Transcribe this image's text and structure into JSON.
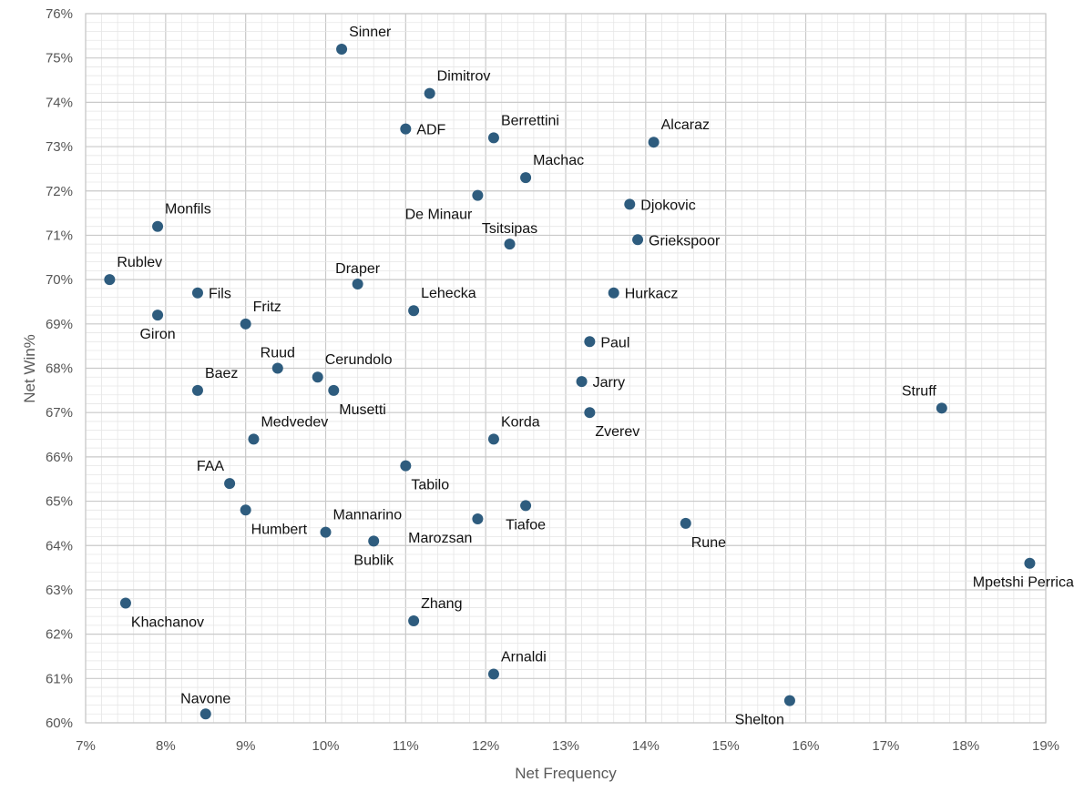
{
  "chart_data": {
    "type": "scatter",
    "xlabel": "Net Frequency",
    "ylabel": "Net Win%",
    "xlim": [
      7,
      19
    ],
    "ylim": [
      60,
      76
    ],
    "x_unit": "%",
    "y_unit": "%",
    "xticks": [
      "7%",
      "8%",
      "9%",
      "10%",
      "11%",
      "12%",
      "13%",
      "14%",
      "15%",
      "16%",
      "17%",
      "18%",
      "19%"
    ],
    "yticks": [
      "60%",
      "61%",
      "62%",
      "63%",
      "64%",
      "65%",
      "66%",
      "67%",
      "68%",
      "69%",
      "70%",
      "71%",
      "72%",
      "73%",
      "74%",
      "75%",
      "76%"
    ],
    "grid": true,
    "marker_color": "#2e5c7e",
    "points": [
      {
        "name": "Sinner",
        "x": 10.2,
        "y": 75.2,
        "label_pos": "above-right"
      },
      {
        "name": "Dimitrov",
        "x": 11.3,
        "y": 74.2,
        "label_pos": "above-right"
      },
      {
        "name": "ADF",
        "x": 11.0,
        "y": 73.4,
        "label_pos": "right"
      },
      {
        "name": "Berrettini",
        "x": 12.1,
        "y": 73.2,
        "label_pos": "above-right"
      },
      {
        "name": "Alcaraz",
        "x": 14.1,
        "y": 73.1,
        "label_pos": "above-right"
      },
      {
        "name": "Machac",
        "x": 12.5,
        "y": 72.3,
        "label_pos": "above-right"
      },
      {
        "name": "De Minaur",
        "x": 11.9,
        "y": 71.9,
        "label_pos": "below-left"
      },
      {
        "name": "Djokovic",
        "x": 13.8,
        "y": 71.7,
        "label_pos": "right"
      },
      {
        "name": "Monfils",
        "x": 7.9,
        "y": 71.2,
        "label_pos": "above-right"
      },
      {
        "name": "Tsitsipas",
        "x": 12.3,
        "y": 70.8,
        "label_pos": "above"
      },
      {
        "name": "Griekspoor",
        "x": 13.9,
        "y": 70.9,
        "label_pos": "right"
      },
      {
        "name": "Rublev",
        "x": 7.3,
        "y": 70.0,
        "label_pos": "above-right"
      },
      {
        "name": "Draper",
        "x": 10.4,
        "y": 69.9,
        "label_pos": "above"
      },
      {
        "name": "Fils",
        "x": 8.4,
        "y": 69.7,
        "label_pos": "right"
      },
      {
        "name": "Hurkacz",
        "x": 13.6,
        "y": 69.7,
        "label_pos": "right"
      },
      {
        "name": "Lehecka",
        "x": 11.1,
        "y": 69.3,
        "label_pos": "above-right"
      },
      {
        "name": "Giron",
        "x": 7.9,
        "y": 69.2,
        "label_pos": "below"
      },
      {
        "name": "Fritz",
        "x": 9.0,
        "y": 69.0,
        "label_pos": "above-right"
      },
      {
        "name": "Paul",
        "x": 13.3,
        "y": 68.6,
        "label_pos": "right"
      },
      {
        "name": "Ruud",
        "x": 9.4,
        "y": 68.0,
        "label_pos": "above"
      },
      {
        "name": "Cerundolo",
        "x": 9.9,
        "y": 67.8,
        "label_pos": "above-right"
      },
      {
        "name": "Jarry",
        "x": 13.2,
        "y": 67.7,
        "label_pos": "right"
      },
      {
        "name": "Baez",
        "x": 8.4,
        "y": 67.5,
        "label_pos": "above-right"
      },
      {
        "name": "Musetti",
        "x": 10.1,
        "y": 67.5,
        "label_pos": "below-right"
      },
      {
        "name": "Struff",
        "x": 17.7,
        "y": 67.1,
        "label_pos": "above-left"
      },
      {
        "name": "Zverev",
        "x": 13.3,
        "y": 67.0,
        "label_pos": "below-right"
      },
      {
        "name": "Medvedev",
        "x": 9.1,
        "y": 66.4,
        "label_pos": "above-right"
      },
      {
        "name": "Korda",
        "x": 12.1,
        "y": 66.4,
        "label_pos": "above-right"
      },
      {
        "name": "Tabilo",
        "x": 11.0,
        "y": 65.8,
        "label_pos": "below-right"
      },
      {
        "name": "FAA",
        "x": 8.8,
        "y": 65.4,
        "label_pos": "above-left"
      },
      {
        "name": "Tiafoe",
        "x": 12.5,
        "y": 64.9,
        "label_pos": "below"
      },
      {
        "name": "Humbert",
        "x": 9.0,
        "y": 64.8,
        "label_pos": "below-right"
      },
      {
        "name": "Marozsan",
        "x": 11.9,
        "y": 64.6,
        "label_pos": "below-left"
      },
      {
        "name": "Rune",
        "x": 14.5,
        "y": 64.5,
        "label_pos": "below-right"
      },
      {
        "name": "Mannarino",
        "x": 10.0,
        "y": 64.3,
        "label_pos": "above-right"
      },
      {
        "name": "Bublik",
        "x": 10.6,
        "y": 64.1,
        "label_pos": "below"
      },
      {
        "name": "Mpetshi Perricard",
        "x": 18.8,
        "y": 63.6,
        "label_pos": "below"
      },
      {
        "name": "Khachanov",
        "x": 7.5,
        "y": 62.7,
        "label_pos": "below-right"
      },
      {
        "name": "Zhang",
        "x": 11.1,
        "y": 62.3,
        "label_pos": "above-right"
      },
      {
        "name": "Arnaldi",
        "x": 12.1,
        "y": 61.1,
        "label_pos": "above-right"
      },
      {
        "name": "Shelton",
        "x": 15.8,
        "y": 60.5,
        "label_pos": "below-left"
      },
      {
        "name": "Navone",
        "x": 8.5,
        "y": 60.2,
        "label_pos": "above"
      }
    ]
  }
}
